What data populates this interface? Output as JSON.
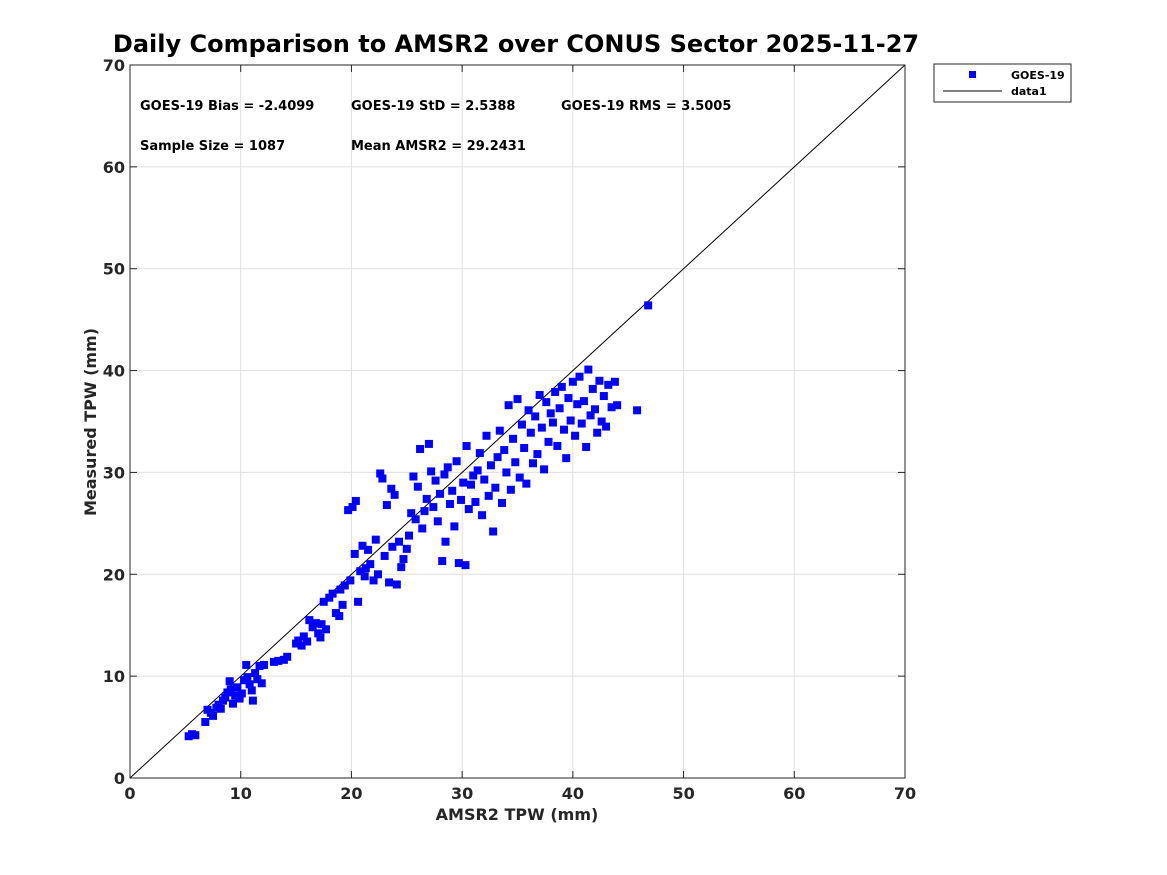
{
  "chart_data": {
    "type": "scatter",
    "title": "Daily Comparison to AMSR2 over CONUS Sector 2025-11-27",
    "xlabel": "AMSR2 TPW (mm)",
    "ylabel": "Measured TPW (mm)",
    "xlim": [
      0,
      70
    ],
    "ylim": [
      0,
      70
    ],
    "xticks": [
      0,
      10,
      20,
      30,
      40,
      50,
      60,
      70
    ],
    "yticks": [
      0,
      10,
      20,
      30,
      40,
      50,
      60,
      70
    ],
    "xtick_labels": [
      "0",
      "10",
      "20",
      "30",
      "40",
      "50",
      "60",
      "70"
    ],
    "ytick_labels": [
      "0",
      "10",
      "20",
      "30",
      "40",
      "50",
      "60",
      "70"
    ],
    "grid": true,
    "legend_position": "outside-top-right",
    "colors": {
      "points": "#0000ff",
      "line": "#000000",
      "grid": "#e0e0e0",
      "axis": "#262626"
    },
    "stats": [
      {
        "text": "GOES-19 Bias = -2.4099",
        "row": 0,
        "col": 0
      },
      {
        "text": "GOES-19 StD = 2.5388",
        "row": 0,
        "col": 1
      },
      {
        "text": "GOES-19 RMS = 3.5005",
        "row": 0,
        "col": 2
      },
      {
        "text": "Sample Size = 1087",
        "row": 1,
        "col": 0
      },
      {
        "text": "Mean AMSR2 = 29.2431",
        "row": 1,
        "col": 1
      }
    ],
    "series": [
      {
        "name": "GOES-19",
        "kind": "scatter",
        "marker": "square",
        "points": [
          [
            5.3,
            4.1
          ],
          [
            5.6,
            4.3
          ],
          [
            5.9,
            4.2
          ],
          [
            6.8,
            5.5
          ],
          [
            7.0,
            6.7
          ],
          [
            7.3,
            6.4
          ],
          [
            7.5,
            6.1
          ],
          [
            7.8,
            6.9
          ],
          [
            8.0,
            7.2
          ],
          [
            8.2,
            6.8
          ],
          [
            8.4,
            7.6
          ],
          [
            8.6,
            7.9
          ],
          [
            8.8,
            8.4
          ],
          [
            9.0,
            9.5
          ],
          [
            9.1,
            8.7
          ],
          [
            9.3,
            7.3
          ],
          [
            9.5,
            8.1
          ],
          [
            9.7,
            8.9
          ],
          [
            9.9,
            7.8
          ],
          [
            10.1,
            8.3
          ],
          [
            10.3,
            9.6
          ],
          [
            10.5,
            11.1
          ],
          [
            10.6,
            9.9
          ],
          [
            10.8,
            9.2
          ],
          [
            11.0,
            8.6
          ],
          [
            11.1,
            7.6
          ],
          [
            11.3,
            10.3
          ],
          [
            11.5,
            9.7
          ],
          [
            11.7,
            11.0
          ],
          [
            11.9,
            9.3
          ],
          [
            12.1,
            11.1
          ],
          [
            13.0,
            11.4
          ],
          [
            13.4,
            11.5
          ],
          [
            13.9,
            11.6
          ],
          [
            14.2,
            11.9
          ],
          [
            15.0,
            13.2
          ],
          [
            15.2,
            13.5
          ],
          [
            15.5,
            13.0
          ],
          [
            15.7,
            13.9
          ],
          [
            16.0,
            13.4
          ],
          [
            16.2,
            15.5
          ],
          [
            16.5,
            14.8
          ],
          [
            16.8,
            15.2
          ],
          [
            17.0,
            14.2
          ],
          [
            17.2,
            13.8
          ],
          [
            17.3,
            15.1
          ],
          [
            17.5,
            17.3
          ],
          [
            17.7,
            14.6
          ],
          [
            18.0,
            17.7
          ],
          [
            18.3,
            18.1
          ],
          [
            18.6,
            16.2
          ],
          [
            18.9,
            15.9
          ],
          [
            19.0,
            18.5
          ],
          [
            19.2,
            17.0
          ],
          [
            19.4,
            18.9
          ],
          [
            19.7,
            26.3
          ],
          [
            19.9,
            19.4
          ],
          [
            20.1,
            26.6
          ],
          [
            20.3,
            22.0
          ],
          [
            20.4,
            27.2
          ],
          [
            20.6,
            17.3
          ],
          [
            20.8,
            20.3
          ],
          [
            21.0,
            22.8
          ],
          [
            21.2,
            19.8
          ],
          [
            21.3,
            20.6
          ],
          [
            21.5,
            22.4
          ],
          [
            21.7,
            21.0
          ],
          [
            22.0,
            19.4
          ],
          [
            22.2,
            23.4
          ],
          [
            22.4,
            20.0
          ],
          [
            22.6,
            29.9
          ],
          [
            22.8,
            29.4
          ],
          [
            23.0,
            21.8
          ],
          [
            23.2,
            26.8
          ],
          [
            23.4,
            19.2
          ],
          [
            23.6,
            28.4
          ],
          [
            23.7,
            22.7
          ],
          [
            23.9,
            27.8
          ],
          [
            24.1,
            19.0
          ],
          [
            24.3,
            23.2
          ],
          [
            24.5,
            20.7
          ],
          [
            24.7,
            21.5
          ],
          [
            25.0,
            22.5
          ],
          [
            25.2,
            23.8
          ],
          [
            25.4,
            26.0
          ],
          [
            25.6,
            29.6
          ],
          [
            25.8,
            25.4
          ],
          [
            26.0,
            28.6
          ],
          [
            26.2,
            32.3
          ],
          [
            26.4,
            24.5
          ],
          [
            26.6,
            26.2
          ],
          [
            26.8,
            27.4
          ],
          [
            27.0,
            32.8
          ],
          [
            27.2,
            30.1
          ],
          [
            27.4,
            26.6
          ],
          [
            27.6,
            29.2
          ],
          [
            27.8,
            25.2
          ],
          [
            28.0,
            27.9
          ],
          [
            28.2,
            21.3
          ],
          [
            28.4,
            29.8
          ],
          [
            28.5,
            23.2
          ],
          [
            28.7,
            30.5
          ],
          [
            28.9,
            26.9
          ],
          [
            29.1,
            28.2
          ],
          [
            29.3,
            24.7
          ],
          [
            29.5,
            31.1
          ],
          [
            29.7,
            21.1
          ],
          [
            29.9,
            27.3
          ],
          [
            30.1,
            29.0
          ],
          [
            30.3,
            20.9
          ],
          [
            30.4,
            32.6
          ],
          [
            30.6,
            26.4
          ],
          [
            30.8,
            28.8
          ],
          [
            31.0,
            29.7
          ],
          [
            31.2,
            27.1
          ],
          [
            31.4,
            30.2
          ],
          [
            31.6,
            31.9
          ],
          [
            31.8,
            25.8
          ],
          [
            32.0,
            29.3
          ],
          [
            32.2,
            33.6
          ],
          [
            32.4,
            27.7
          ],
          [
            32.6,
            30.7
          ],
          [
            32.8,
            24.2
          ],
          [
            33.0,
            28.5
          ],
          [
            33.2,
            31.5
          ],
          [
            33.4,
            34.1
          ],
          [
            33.6,
            27.0
          ],
          [
            33.8,
            32.2
          ],
          [
            34.0,
            30.0
          ],
          [
            34.2,
            36.6
          ],
          [
            34.4,
            28.3
          ],
          [
            34.6,
            33.3
          ],
          [
            34.8,
            31.0
          ],
          [
            35.0,
            37.2
          ],
          [
            35.2,
            29.5
          ],
          [
            35.4,
            34.7
          ],
          [
            35.6,
            32.4
          ],
          [
            35.8,
            28.9
          ],
          [
            36.0,
            36.1
          ],
          [
            36.2,
            33.9
          ],
          [
            36.4,
            30.9
          ],
          [
            36.6,
            35.5
          ],
          [
            36.8,
            31.8
          ],
          [
            37.0,
            37.6
          ],
          [
            37.2,
            34.4
          ],
          [
            37.4,
            30.3
          ],
          [
            37.6,
            36.9
          ],
          [
            37.8,
            33.0
          ],
          [
            38.0,
            35.8
          ],
          [
            38.2,
            34.9
          ],
          [
            38.4,
            37.9
          ],
          [
            38.6,
            32.6
          ],
          [
            38.8,
            36.3
          ],
          [
            39.0,
            38.4
          ],
          [
            39.2,
            34.2
          ],
          [
            39.4,
            31.4
          ],
          [
            39.6,
            37.3
          ],
          [
            39.8,
            35.1
          ],
          [
            40.0,
            38.9
          ],
          [
            40.2,
            33.6
          ],
          [
            40.4,
            36.7
          ],
          [
            40.6,
            39.4
          ],
          [
            40.8,
            34.8
          ],
          [
            41.0,
            37.0
          ],
          [
            41.2,
            32.5
          ],
          [
            41.4,
            40.1
          ],
          [
            41.6,
            35.6
          ],
          [
            41.8,
            38.2
          ],
          [
            42.0,
            36.2
          ],
          [
            42.2,
            33.9
          ],
          [
            42.4,
            39.0
          ],
          [
            42.6,
            35.0
          ],
          [
            42.8,
            37.5
          ],
          [
            43.0,
            34.5
          ],
          [
            43.2,
            38.6
          ],
          [
            43.5,
            36.4
          ],
          [
            43.8,
            38.9
          ],
          [
            44.0,
            36.6
          ],
          [
            45.8,
            36.1
          ],
          [
            46.8,
            46.4
          ]
        ]
      },
      {
        "name": "data1",
        "kind": "line",
        "points": [
          [
            0,
            0
          ],
          [
            70,
            70
          ]
        ]
      }
    ]
  }
}
